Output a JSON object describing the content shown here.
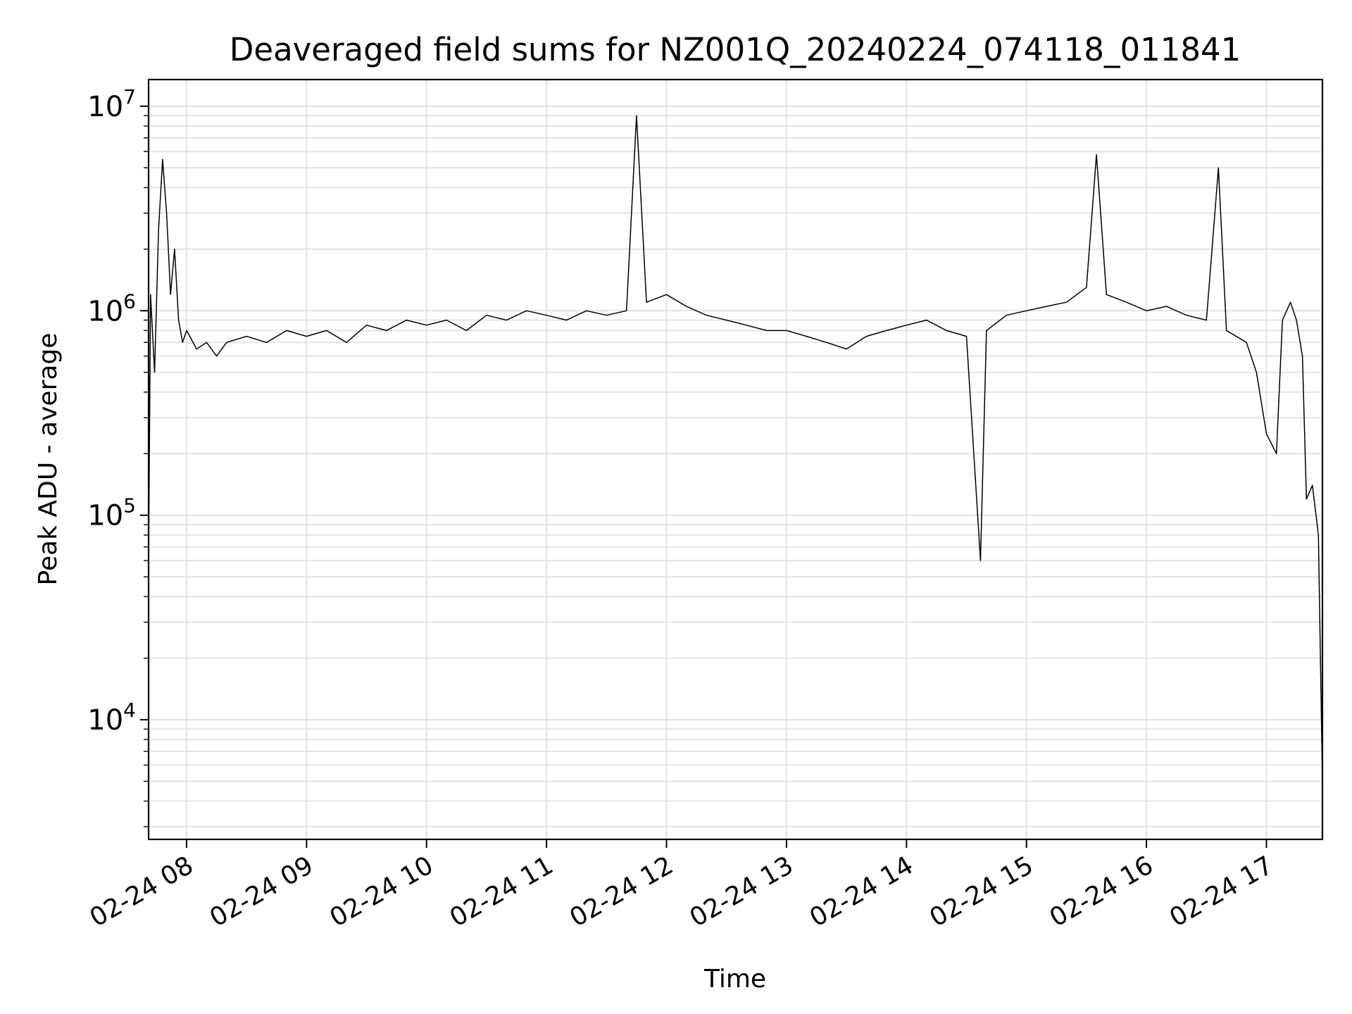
{
  "chart_data": {
    "type": "line",
    "title": "Deaveraged field sums for NZ001Q_20240224_074118_011841",
    "xlabel": "Time",
    "ylabel": "Peak ADU - average",
    "yscale": "log",
    "grid": true,
    "line_color": "#000000",
    "grid_color": "#e6e6e6",
    "xlim": [
      "2024-02-24 07:41",
      "2024-02-24 17:28"
    ],
    "ylim": [
      2600,
      13500000
    ],
    "x_ticks": [
      {
        "label": "02-24 08",
        "time": "2024-02-24 08:00"
      },
      {
        "label": "02-24 09",
        "time": "2024-02-24 09:00"
      },
      {
        "label": "02-24 10",
        "time": "2024-02-24 10:00"
      },
      {
        "label": "02-24 11",
        "time": "2024-02-24 11:00"
      },
      {
        "label": "02-24 12",
        "time": "2024-02-24 12:00"
      },
      {
        "label": "02-24 13",
        "time": "2024-02-24 13:00"
      },
      {
        "label": "02-24 14",
        "time": "2024-02-24 14:00"
      },
      {
        "label": "02-24 15",
        "time": "2024-02-24 15:00"
      },
      {
        "label": "02-24 16",
        "time": "2024-02-24 16:00"
      },
      {
        "label": "02-24 17",
        "time": "2024-02-24 17:00"
      }
    ],
    "y_ticks": [
      {
        "base": "10",
        "exp": "4",
        "value": 10000
      },
      {
        "base": "10",
        "exp": "5",
        "value": 100000
      },
      {
        "base": "10",
        "exp": "6",
        "value": 1000000
      },
      {
        "base": "10",
        "exp": "7",
        "value": 10000000
      }
    ],
    "series": [
      {
        "x": [
          "2024-02-24 07:41",
          "2024-02-24 07:42",
          "2024-02-24 07:44",
          "2024-02-24 07:46",
          "2024-02-24 07:48",
          "2024-02-24 07:50",
          "2024-02-24 07:52",
          "2024-02-24 07:54",
          "2024-02-24 07:56",
          "2024-02-24 07:58",
          "2024-02-24 08:00",
          "2024-02-24 08:05",
          "2024-02-24 08:10",
          "2024-02-24 08:15",
          "2024-02-24 08:20",
          "2024-02-24 08:30",
          "2024-02-24 08:40",
          "2024-02-24 08:50",
          "2024-02-24 09:00",
          "2024-02-24 09:10",
          "2024-02-24 09:20",
          "2024-02-24 09:30",
          "2024-02-24 09:40",
          "2024-02-24 09:50",
          "2024-02-24 10:00",
          "2024-02-24 10:10",
          "2024-02-24 10:20",
          "2024-02-24 10:30",
          "2024-02-24 10:40",
          "2024-02-24 10:50",
          "2024-02-24 11:00",
          "2024-02-24 11:10",
          "2024-02-24 11:20",
          "2024-02-24 11:30",
          "2024-02-24 11:40",
          "2024-02-24 11:45",
          "2024-02-24 11:50",
          "2024-02-24 12:00",
          "2024-02-24 12:10",
          "2024-02-24 12:20",
          "2024-02-24 12:30",
          "2024-02-24 12:40",
          "2024-02-24 12:50",
          "2024-02-24 13:00",
          "2024-02-24 13:10",
          "2024-02-24 13:20",
          "2024-02-24 13:30",
          "2024-02-24 13:40",
          "2024-02-24 13:50",
          "2024-02-24 14:00",
          "2024-02-24 14:10",
          "2024-02-24 14:20",
          "2024-02-24 14:30",
          "2024-02-24 14:37",
          "2024-02-24 14:40",
          "2024-02-24 14:50",
          "2024-02-24 15:00",
          "2024-02-24 15:10",
          "2024-02-24 15:20",
          "2024-02-24 15:30",
          "2024-02-24 15:35",
          "2024-02-24 15:40",
          "2024-02-24 15:50",
          "2024-02-24 16:00",
          "2024-02-24 16:10",
          "2024-02-24 16:20",
          "2024-02-24 16:30",
          "2024-02-24 16:36",
          "2024-02-24 16:40",
          "2024-02-24 16:50",
          "2024-02-24 16:55",
          "2024-02-24 17:00",
          "2024-02-24 17:05",
          "2024-02-24 17:08",
          "2024-02-24 17:12",
          "2024-02-24 17:15",
          "2024-02-24 17:18",
          "2024-02-24 17:20",
          "2024-02-24 17:23",
          "2024-02-24 17:26",
          "2024-02-24 17:28"
        ],
        "y": [
          60000,
          1200000,
          500000,
          2500000,
          5500000,
          3000000,
          1200000,
          2000000,
          900000,
          700000,
          800000,
          650000,
          700000,
          600000,
          700000,
          750000,
          700000,
          800000,
          750000,
          800000,
          700000,
          850000,
          800000,
          900000,
          850000,
          900000,
          800000,
          950000,
          900000,
          1000000,
          950000,
          900000,
          1000000,
          950000,
          1000000,
          9000000,
          1100000,
          1200000,
          1050000,
          950000,
          900000,
          850000,
          800000,
          800000,
          750000,
          700000,
          650000,
          750000,
          800000,
          850000,
          900000,
          800000,
          750000,
          60000,
          800000,
          950000,
          1000000,
          1050000,
          1100000,
          1300000,
          5800000,
          1200000,
          1100000,
          1000000,
          1050000,
          950000,
          900000,
          5000000,
          800000,
          700000,
          500000,
          250000,
          200000,
          900000,
          1100000,
          900000,
          600000,
          120000,
          140000,
          80000,
          5000
        ]
      }
    ]
  }
}
